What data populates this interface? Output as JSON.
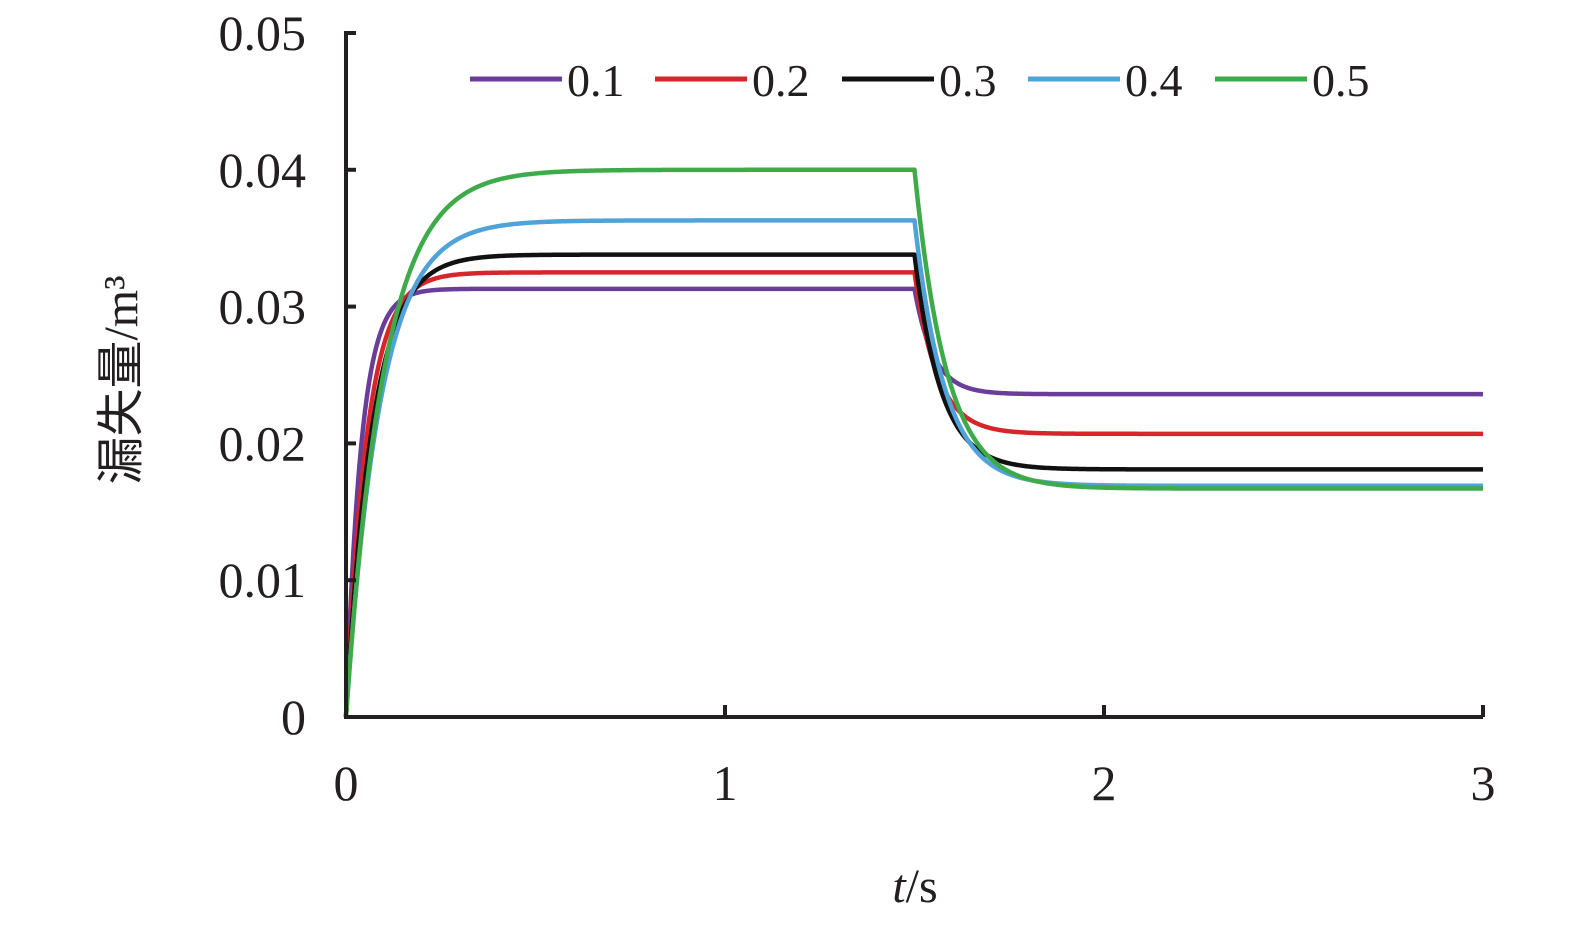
{
  "chart_data": {
    "type": "line",
    "title": "",
    "xlabel": "t/s",
    "ylabel": "漏失量/m³",
    "xlim": [
      0,
      3
    ],
    "ylim": [
      0,
      0.05
    ],
    "x_ticks": [
      "0",
      "1",
      "2",
      "3"
    ],
    "y_ticks": [
      "0",
      "0.01",
      "0.02",
      "0.03",
      "0.04",
      "0.05"
    ],
    "grid": false,
    "legend_position": "top",
    "step_time": 1.5,
    "series": [
      {
        "name": "0.1",
        "color": "#6a3d9a",
        "start": 0.0,
        "plateau1": 0.0313,
        "plateau2": 0.0236,
        "tau_rise": 0.04,
        "tau_fall": 0.05
      },
      {
        "name": "0.2",
        "color": "#d7262b",
        "start": 0.0,
        "plateau1": 0.0325,
        "plateau2": 0.0207,
        "tau_rise": 0.055,
        "tau_fall": 0.06
      },
      {
        "name": "0.3",
        "color": "#111111",
        "start": 0.0,
        "plateau1": 0.0338,
        "plateau2": 0.0181,
        "tau_rise": 0.07,
        "tau_fall": 0.07
      },
      {
        "name": "0.4",
        "color": "#4fa3d9",
        "start": 0.0,
        "plateau1": 0.0363,
        "plateau2": 0.0169,
        "tau_rise": 0.09,
        "tau_fall": 0.08
      },
      {
        "name": "0.5",
        "color": "#3faa4a",
        "start": 0.0,
        "plateau1": 0.04,
        "plateau2": 0.0167,
        "tau_rise": 0.1,
        "tau_fall": 0.085
      }
    ]
  }
}
